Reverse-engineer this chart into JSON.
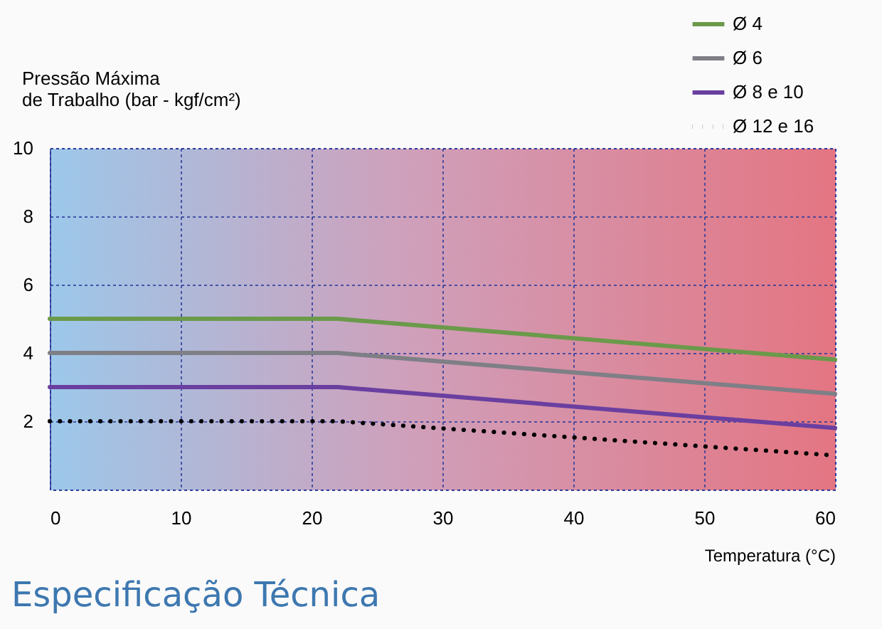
{
  "chart_data": {
    "type": "line",
    "xlabel": "Temperatura (°C)",
    "ylabel": "Pressão Máxima\nde Trabalho (bar - kgf/cm²)",
    "x": [
      0,
      22,
      60
    ],
    "series": [
      {
        "name": "Ø 4",
        "color": "#6a9a4a",
        "values": [
          5,
          5,
          3.8
        ]
      },
      {
        "name": "Ø 6",
        "color": "#7f7f86",
        "values": [
          4,
          4,
          2.8
        ]
      },
      {
        "name": "Ø 8 e 10",
        "color": "#6a3fa0",
        "values": [
          3,
          3,
          1.8
        ]
      },
      {
        "name": "Ø 12 e 16",
        "color": "#000000",
        "values": [
          2,
          2,
          1.0
        ],
        "line_style": "dotted"
      }
    ],
    "xlim": [
      0,
      60
    ],
    "xticks": [
      0,
      10,
      20,
      30,
      40,
      50,
      60
    ],
    "ylim": [
      0,
      10
    ],
    "yticks": [
      2,
      4,
      6,
      8,
      10
    ],
    "grid": true,
    "legend": "top right",
    "marker": "none",
    "annotations": [
      "Especificação Técnica"
    ]
  }
}
